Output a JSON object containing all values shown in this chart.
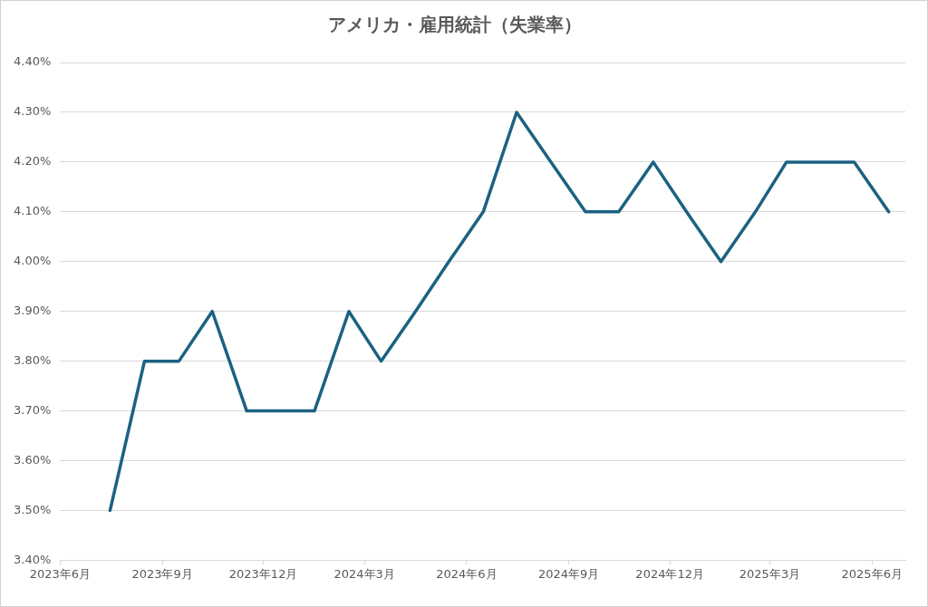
{
  "chart_data": {
    "type": "line",
    "title": "アメリカ・雇用統計（失業率）",
    "x": [
      "2023-07-16",
      "2023-08-16",
      "2023-09-16",
      "2023-10-16",
      "2023-11-16",
      "2023-12-16",
      "2024-01-16",
      "2024-02-16",
      "2024-03-16",
      "2024-04-16",
      "2024-05-16",
      "2024-06-16",
      "2024-07-16",
      "2024-08-16",
      "2024-09-16",
      "2024-10-16",
      "2024-11-16",
      "2024-12-16",
      "2025-01-16",
      "2025-02-16",
      "2025-03-16",
      "2025-04-16",
      "2025-05-16",
      "2025-06-16"
    ],
    "series": [
      {
        "color": "#1b6282",
        "values": [
          3.5,
          3.8,
          3.8,
          3.9,
          3.7,
          3.7,
          3.7,
          3.9,
          3.8,
          3.9,
          4.0,
          4.1,
          4.3,
          4.2,
          4.1,
          4.1,
          4.2,
          4.1,
          4.0,
          4.1,
          4.2,
          4.2,
          4.2,
          4.1
        ]
      }
    ],
    "xlim": [
      "2023-06-01",
      "2025-07-01"
    ],
    "xticks": [
      {
        "value": "2023-06-01",
        "label": "2023年6月"
      },
      {
        "value": "2023-09-01",
        "label": "2023年9月"
      },
      {
        "value": "2023-12-01",
        "label": "2023年12月"
      },
      {
        "value": "2024-03-01",
        "label": "2024年3月"
      },
      {
        "value": "2024-06-01",
        "label": "2024年6月"
      },
      {
        "value": "2024-09-01",
        "label": "2024年9月"
      },
      {
        "value": "2024-12-01",
        "label": "2024年12月"
      },
      {
        "value": "2025-03-01",
        "label": "2025年3月"
      },
      {
        "value": "2025-06-01",
        "label": "2025年6月"
      }
    ],
    "ylim": [
      3.4,
      4.4
    ],
    "yticks": [
      {
        "value": 3.4,
        "label": "3.40%"
      },
      {
        "value": 3.5,
        "label": "3.50%"
      },
      {
        "value": 3.6,
        "label": "3.60%"
      },
      {
        "value": 3.7,
        "label": "3.70%"
      },
      {
        "value": 3.8,
        "label": "3.80%"
      },
      {
        "value": 3.9,
        "label": "3.90%"
      },
      {
        "value": 4.0,
        "label": "4.00%"
      },
      {
        "value": 4.1,
        "label": "4.10%"
      },
      {
        "value": 4.2,
        "label": "4.20%"
      },
      {
        "value": 4.3,
        "label": "4.30%"
      },
      {
        "value": 4.4,
        "label": "4.40%"
      }
    ],
    "grid": "y",
    "legend": false,
    "marker": "none",
    "line_style": "solid"
  }
}
